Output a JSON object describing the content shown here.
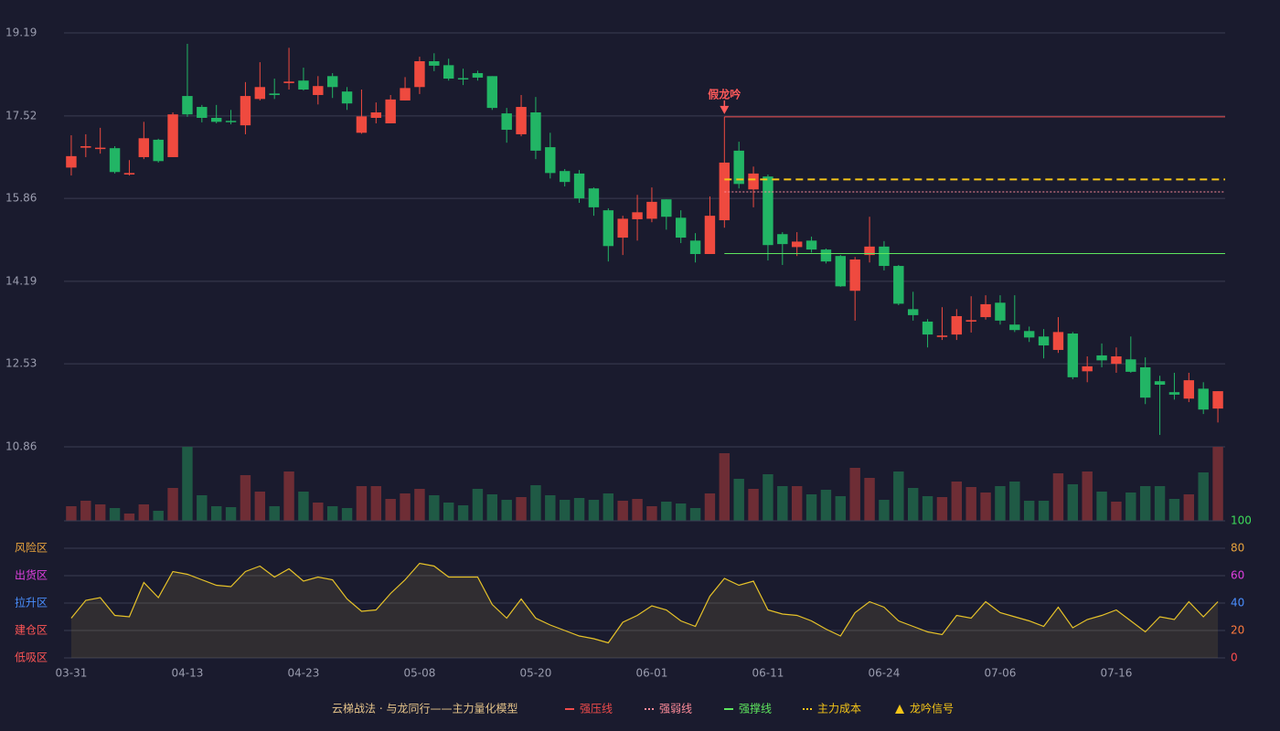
{
  "chart_data": [
    {
      "type": "candlestick",
      "categories": [
        "03-31",
        null,
        null,
        null,
        null,
        null,
        null,
        null,
        "04-13",
        null,
        null,
        null,
        null,
        null,
        null,
        null,
        "04-23",
        null,
        null,
        null,
        null,
        null,
        null,
        null,
        "05-08",
        null,
        null,
        null,
        null,
        null,
        null,
        null,
        "05-20",
        null,
        null,
        null,
        null,
        null,
        null,
        null,
        "06-01",
        null,
        null,
        null,
        null,
        null,
        null,
        null,
        "06-11",
        null,
        null,
        null,
        null,
        null,
        null,
        null,
        "06-24",
        null,
        null,
        null,
        null,
        null,
        null,
        null,
        "07-06",
        null,
        null,
        null,
        null,
        null,
        null,
        null,
        "07-16",
        null,
        null,
        null,
        null,
        null,
        null,
        null
      ],
      "open": [
        16.48,
        16.88,
        16.86,
        16.87,
        16.34,
        16.69,
        17.04,
        16.69,
        17.92,
        17.7,
        17.48,
        17.42,
        17.33,
        17.86,
        17.97,
        18.18,
        18.23,
        17.94,
        18.32,
        18.01,
        17.18,
        17.48,
        17.37,
        17.83,
        18.1,
        18.62,
        18.54,
        18.28,
        18.38,
        18.32,
        17.57,
        17.15,
        17.59,
        16.89,
        16.41,
        16.36,
        16.06,
        15.62,
        15.07,
        15.44,
        15.45,
        15.84,
        15.47,
        15.01,
        14.74,
        15.42,
        16.82,
        16.04,
        16.3,
        15.14,
        14.88,
        15.01,
        14.83,
        14.7,
        14.0,
        14.72,
        14.89,
        14.5,
        13.63,
        13.38,
        13.07,
        13.12,
        13.38,
        13.47,
        13.76,
        13.32,
        13.19,
        13.08,
        12.81,
        13.14,
        12.38,
        12.7,
        12.53,
        12.62,
        12.46,
        12.18,
        11.96,
        11.83,
        12.03,
        11.63
      ],
      "close": [
        16.71,
        16.91,
        16.88,
        16.39,
        16.37,
        17.07,
        16.61,
        17.55,
        17.55,
        17.48,
        17.4,
        17.4,
        17.92,
        18.1,
        17.94,
        18.21,
        18.05,
        18.12,
        18.1,
        17.77,
        17.51,
        17.59,
        17.85,
        18.08,
        18.62,
        18.53,
        18.27,
        18.26,
        18.29,
        17.68,
        17.24,
        17.7,
        16.82,
        16.37,
        16.19,
        15.86,
        15.68,
        14.9,
        15.45,
        15.58,
        15.79,
        15.49,
        15.07,
        14.74,
        15.51,
        16.58,
        16.15,
        16.36,
        14.92,
        14.94,
        14.99,
        14.83,
        14.59,
        14.09,
        14.63,
        14.89,
        14.5,
        13.74,
        13.51,
        13.12,
        13.1,
        13.49,
        13.41,
        13.73,
        13.4,
        13.21,
        13.06,
        12.9,
        13.17,
        12.26,
        12.48,
        12.6,
        12.68,
        12.37,
        11.85,
        12.11,
        11.91,
        12.2,
        11.61,
        11.98
      ],
      "high": [
        17.13,
        17.15,
        17.28,
        16.91,
        16.63,
        17.4,
        17.06,
        17.59,
        18.97,
        17.74,
        17.74,
        17.64,
        18.2,
        18.6,
        18.27,
        18.89,
        18.49,
        18.32,
        18.38,
        18.1,
        18.05,
        17.79,
        17.94,
        18.3,
        18.71,
        18.78,
        18.67,
        18.47,
        18.43,
        18.32,
        17.68,
        17.94,
        17.9,
        17.18,
        16.45,
        16.43,
        16.08,
        15.66,
        15.51,
        15.93,
        16.08,
        15.84,
        15.62,
        15.16,
        15.9,
        17.5,
        17.0,
        16.5,
        16.34,
        15.18,
        15.18,
        15.09,
        14.85,
        14.72,
        14.68,
        15.49,
        15.0,
        14.52,
        13.98,
        13.43,
        13.67,
        13.63,
        13.89,
        13.91,
        13.91,
        13.91,
        13.28,
        13.23,
        13.47,
        13.17,
        12.68,
        12.94,
        12.86,
        13.08,
        12.66,
        12.29,
        12.35,
        12.35,
        12.16,
        11.98
      ],
      "low": [
        16.32,
        16.69,
        16.76,
        16.36,
        16.32,
        16.65,
        16.58,
        16.69,
        17.5,
        17.39,
        17.37,
        17.35,
        17.15,
        17.83,
        17.86,
        18.05,
        18.03,
        17.75,
        17.88,
        17.64,
        17.16,
        17.37,
        17.37,
        17.83,
        17.96,
        18.42,
        18.23,
        18.14,
        18.23,
        17.64,
        16.98,
        17.11,
        16.65,
        16.26,
        16.1,
        15.77,
        15.51,
        14.59,
        14.72,
        15.01,
        15.38,
        15.23,
        14.96,
        14.57,
        14.74,
        15.27,
        16.06,
        15.68,
        14.61,
        14.52,
        14.7,
        14.77,
        14.55,
        14.08,
        13.4,
        14.57,
        14.41,
        13.71,
        13.4,
        12.86,
        13.01,
        13.01,
        13.16,
        13.42,
        13.32,
        13.17,
        12.97,
        12.64,
        12.75,
        12.22,
        12.16,
        12.46,
        12.35,
        12.35,
        11.72,
        11.1,
        11.81,
        11.76,
        11.52,
        11.35
      ],
      "up_color": "#ef4a3f",
      "down_color": "#22b565",
      "ylim": [
        10.86,
        19.19
      ],
      "yticks": [
        10.86,
        12.53,
        14.19,
        15.86,
        17.52,
        19.19
      ],
      "grid": true,
      "signal": {
        "label": "假龙吟",
        "index": 45,
        "color": "#ff5a5a",
        "legend_name": "龙吟信号",
        "legend_color": "#f5c518"
      },
      "lines": [
        {
          "name": "强压线",
          "value": 17.5,
          "color": "#f04b4b",
          "style": "solid"
        },
        {
          "name": "强弱线",
          "value": 15.99,
          "color": "#ff8c9a",
          "style": "dotted"
        },
        {
          "name": "强撑线",
          "value": 14.75,
          "color": "#5ee65e",
          "style": "solid"
        },
        {
          "name": "主力成本",
          "value": 16.24,
          "color": "#f5c518",
          "style": "dashed"
        }
      ],
      "legend_title": "云梯战法 · 与龙同行——主力量化模型"
    },
    {
      "type": "bar",
      "values": [
        16,
        22,
        18,
        14,
        8,
        18,
        11,
        36,
        81,
        28,
        16,
        15,
        50,
        32,
        16,
        54,
        32,
        20,
        16,
        14,
        38,
        38,
        24,
        30,
        35,
        28,
        20,
        17,
        35,
        29,
        23,
        26,
        39,
        28,
        23,
        25,
        23,
        30,
        22,
        24,
        16,
        21,
        19,
        14,
        30,
        74,
        46,
        35,
        51,
        38,
        38,
        29,
        34,
        27,
        58,
        47,
        23,
        54,
        36,
        27,
        26,
        43,
        37,
        31,
        38,
        43,
        22,
        22,
        52,
        40,
        54,
        32,
        21,
        31,
        38,
        38,
        24,
        29,
        53,
        81
      ],
      "up_color": "#6e2d35",
      "down_color": "#1f5a45"
    },
    {
      "type": "area",
      "values": [
        29,
        42,
        44,
        31,
        30,
        55,
        44,
        63,
        61,
        57,
        53,
        52,
        63,
        67,
        59,
        65,
        56,
        59,
        57,
        43,
        34,
        35,
        47,
        57,
        69,
        67,
        59,
        59,
        59,
        39,
        29,
        43,
        29,
        24,
        20,
        16,
        14,
        11,
        26,
        31,
        38,
        35,
        27,
        23,
        45,
        58,
        53,
        56,
        35,
        32,
        31,
        27,
        21,
        16,
        33,
        41,
        37,
        27,
        23,
        19,
        17,
        31,
        29,
        41,
        33,
        30,
        27,
        23,
        37,
        22,
        28,
        31,
        35,
        27,
        19,
        30,
        28,
        41,
        30,
        41
      ],
      "color": "#e6c229",
      "ylim": [
        0,
        100
      ],
      "yticks": [
        0,
        20,
        40,
        60,
        80,
        100
      ],
      "ytick_colors": [
        "#ff4d4d",
        "#ff7a3d",
        "#4a8fff",
        "#e040e0",
        "#e8a33d",
        "#3ddc5a"
      ],
      "zones": [
        {
          "label": "低吸区",
          "value": 0,
          "color": "#ff5555"
        },
        {
          "label": "建仓区",
          "value": 20,
          "color": "#ff5555"
        },
        {
          "label": "拉升区",
          "value": 40,
          "color": "#4a8fff"
        },
        {
          "label": "出货区",
          "value": 60,
          "color": "#e040e0"
        },
        {
          "label": "风险区",
          "value": 80,
          "color": "#e8a33d"
        }
      ]
    }
  ]
}
